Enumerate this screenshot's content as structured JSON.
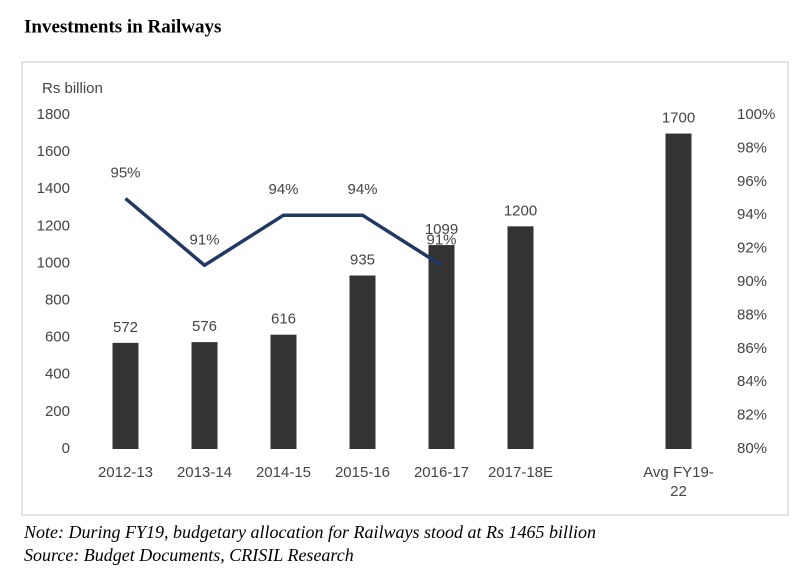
{
  "chart_data": {
    "type": "bar",
    "title": "Investments in Railways",
    "y_label": "Rs billion",
    "categories": [
      "2012-13",
      "2013-14",
      "2014-15",
      "2015-16",
      "2016-17",
      "2017-18E",
      null,
      "Avg FY19-22"
    ],
    "series": [
      {
        "type": "bar",
        "color": "#333333",
        "values": [
          572,
          576,
          616,
          935,
          1099,
          1200,
          null,
          1700
        ]
      },
      {
        "type": "line",
        "axis": "y2",
        "color": "#1f3864",
        "values": [
          95,
          91,
          94,
          94,
          91,
          null,
          null,
          null
        ],
        "value_labels": [
          "95%",
          "91%",
          "94%",
          "94%",
          "91%",
          null,
          null,
          null
        ]
      }
    ],
    "ylim": [
      0,
      1800
    ],
    "yticks": [
      0,
      200,
      400,
      600,
      800,
      1000,
      1200,
      1400,
      1600,
      1800
    ],
    "y2lim": [
      80,
      100
    ],
    "y2ticks": [
      {
        "value": 80,
        "label": "80%"
      },
      {
        "value": 82,
        "label": "82%"
      },
      {
        "value": 84,
        "label": "84%"
      },
      {
        "value": 86,
        "label": "86%"
      },
      {
        "value": 88,
        "label": "88%"
      },
      {
        "value": 90,
        "label": "90%"
      },
      {
        "value": 92,
        "label": "92%"
      },
      {
        "value": 94,
        "label": "94%"
      },
      {
        "value": 96,
        "label": "96%"
      },
      {
        "value": 98,
        "label": "98%"
      },
      {
        "value": 100,
        "label": "100%"
      }
    ],
    "grid": false,
    "note": "Note: During FY19, budgetary allocation for Railways stood at Rs 1465 billion",
    "source": "Source: Budget Documents, CRISIL Research"
  }
}
